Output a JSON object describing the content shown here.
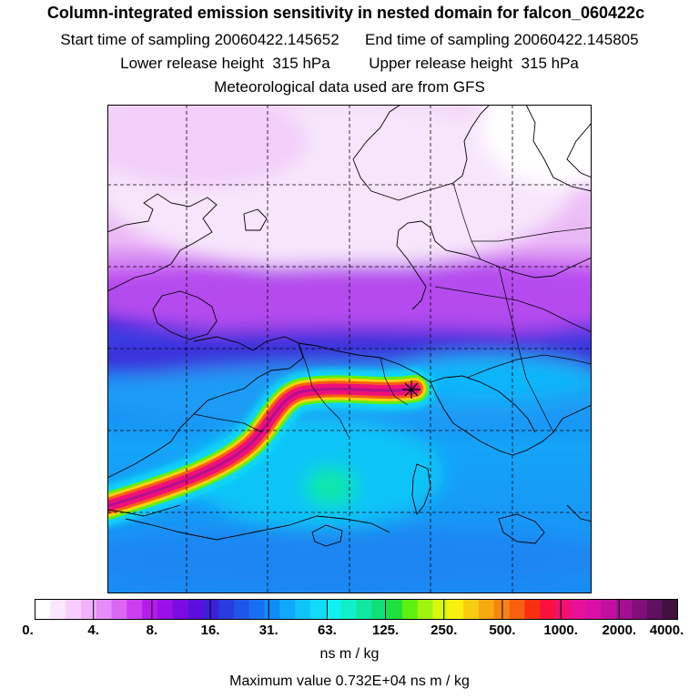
{
  "header": {
    "title": "Column-integrated emission sensitivity in nested domain for falcon_060422c",
    "start_label": "Start time of sampling",
    "start_value": "20060422.145652",
    "end_label": "End time of sampling",
    "end_value": "20060422.145805",
    "lower_label": "Lower release height",
    "lower_value": "315 hPa",
    "upper_label": "Upper release height",
    "upper_value": "315 hPa",
    "met_line": "Meteorological data used are from GFS"
  },
  "colorbar": {
    "tick_labels": [
      "0.",
      "4.",
      "8.",
      "16.",
      "31.",
      "63.",
      "125.",
      "250.",
      "500.",
      "1000.",
      "2000.",
      "4000."
    ],
    "colors": [
      "#ffffff",
      "#fbe6ff",
      "#f6cdfd",
      "#f0b2fb",
      "#e68cf8",
      "#dc66f4",
      "#cc3ef0",
      "#b41cec",
      "#9a10e6",
      "#7a0ce0",
      "#5a10dc",
      "#3c20d8",
      "#2a3ce0",
      "#2056e8",
      "#1870f0",
      "#108cf8",
      "#10a8fa",
      "#10c4fa",
      "#10dcfa",
      "#10f0f0",
      "#10f0c8",
      "#10e8a0",
      "#10e078",
      "#20e040",
      "#60f010",
      "#a0f410",
      "#d8f810",
      "#f8f010",
      "#f8cc10",
      "#f8a810",
      "#f88410",
      "#f86010",
      "#f83010",
      "#f81040",
      "#f01070",
      "#e81098",
      "#d810a8",
      "#c010a0",
      "#a01090",
      "#801078",
      "#601060",
      "#401040"
    ],
    "units": "ns m / kg"
  },
  "max_line": "Maximum value  0.732E+04 ns m / kg",
  "map": {
    "receptor_marker": "asterisk-icon",
    "plume_core_color": "#f0107a"
  }
}
